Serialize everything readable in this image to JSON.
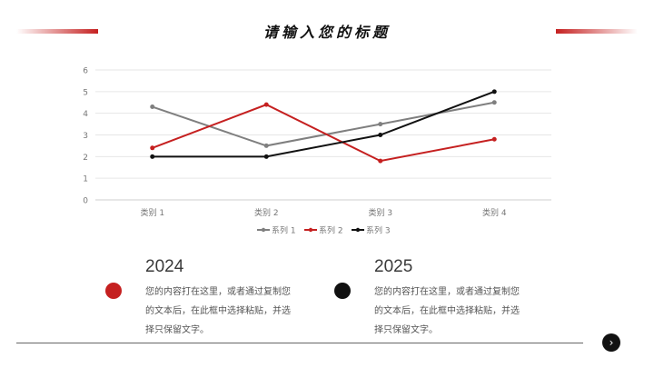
{
  "header": {
    "title": "请输入您的标题"
  },
  "chart_data": {
    "type": "line",
    "categories": [
      "类别 1",
      "类别 2",
      "类别 3",
      "类别 4"
    ],
    "series": [
      {
        "name": "系列 1",
        "values": [
          4.3,
          2.5,
          3.5,
          4.5
        ],
        "color": "#7f7f7f"
      },
      {
        "name": "系列 2",
        "values": [
          2.4,
          4.4,
          1.8,
          2.8
        ],
        "color": "#c52020"
      },
      {
        "name": "系列 3",
        "values": [
          2,
          2,
          3,
          5
        ],
        "color": "#111111"
      }
    ],
    "ylim": [
      0,
      6
    ],
    "yticks": [
      0,
      1,
      2,
      3,
      4,
      5,
      6
    ],
    "grid": true,
    "legend": "bottom"
  },
  "timeline": [
    {
      "year": "2024",
      "text": "您的内容打在这里，或者通过复制您的文本后，在此框中选择粘贴，并选择只保留文字。",
      "color": "#c52020"
    },
    {
      "year": "2025",
      "text": "您的内容打在这里，或者通过复制您的文本后，在此框中选择粘贴，并选择只保留文字。",
      "color": "#111111"
    }
  ],
  "nav": {
    "next_icon": "›"
  }
}
